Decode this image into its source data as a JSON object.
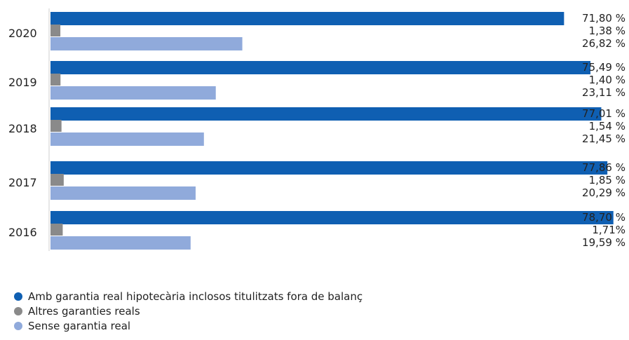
{
  "chart_data": {
    "type": "bar",
    "orientation": "horizontal",
    "categories": [
      "2020",
      "2019",
      "2018",
      "2017",
      "2016"
    ],
    "series": [
      {
        "name": "Amb garantia real hipotecària inclosos titulitzats fora de balanç",
        "color": "#0f5fb2",
        "values": [
          71.8,
          75.49,
          77.01,
          77.86,
          78.7
        ],
        "labels": [
          "71,80 %",
          "75,49 %",
          "77,01 %",
          "77,86 %",
          "78,70 %"
        ]
      },
      {
        "name": "Altres garanties reals",
        "color": "#8a8a8a",
        "values": [
          1.38,
          1.4,
          1.54,
          1.85,
          1.71
        ],
        "labels": [
          "1,38 %",
          "1,40 %",
          "1,54 %",
          "1,85 %",
          "1,71%"
        ]
      },
      {
        "name": "Sense garantia real",
        "color": "#90aadb",
        "values": [
          26.82,
          23.11,
          21.45,
          20.29,
          19.59
        ],
        "labels": [
          "26,82 %",
          "23,11 %",
          "21,45 %",
          "20,29 %",
          "19,59 %"
        ]
      }
    ],
    "legend_position": "bottom-left",
    "grid": false
  }
}
